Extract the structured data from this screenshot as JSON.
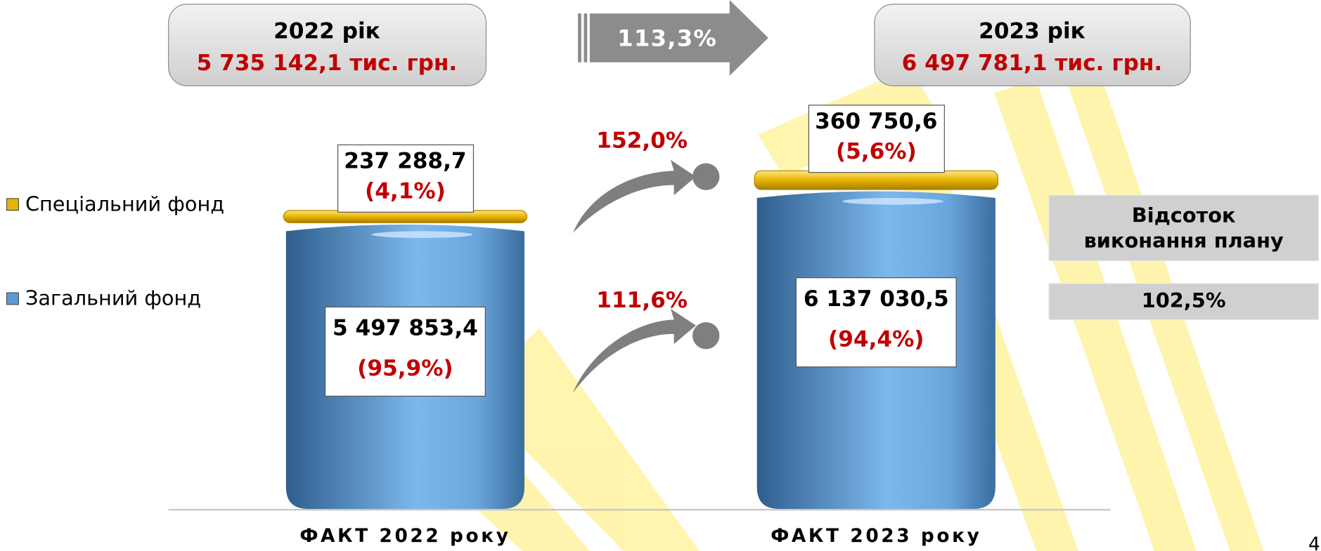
{
  "chart_data": {
    "type": "bar",
    "stacked": true,
    "categories": [
      "ФАКТ 2022 року",
      "ФАКТ 2023 року"
    ],
    "series": [
      {
        "name": "Загальний фонд",
        "color": "#5b9bd5",
        "values": [
          5497853.4,
          6137030.5
        ],
        "value_labels": [
          "5 497 853,4",
          "6 137 030,5"
        ],
        "share_labels": [
          "(95,9%)",
          "(94,4%)"
        ],
        "growth": "111,6%"
      },
      {
        "name": "Спеціальний фонд",
        "color": "#e8b400",
        "values": [
          237288.7,
          360750.6
        ],
        "value_labels": [
          "237 288,7",
          "360 750,6"
        ],
        "share_labels": [
          "(4,1%)",
          "(5,6%)"
        ],
        "growth": "152,0%"
      }
    ],
    "totals": [
      {
        "year": "2022 рік",
        "label": "5 735 142,1 тис. грн."
      },
      {
        "year": "2023 рік",
        "label": "6 497 781,1 тис. грн."
      }
    ],
    "total_growth": "113,3%",
    "plan": {
      "title": "Відсоток виконання плану",
      "value": "102,5%"
    },
    "page_number": "4"
  }
}
